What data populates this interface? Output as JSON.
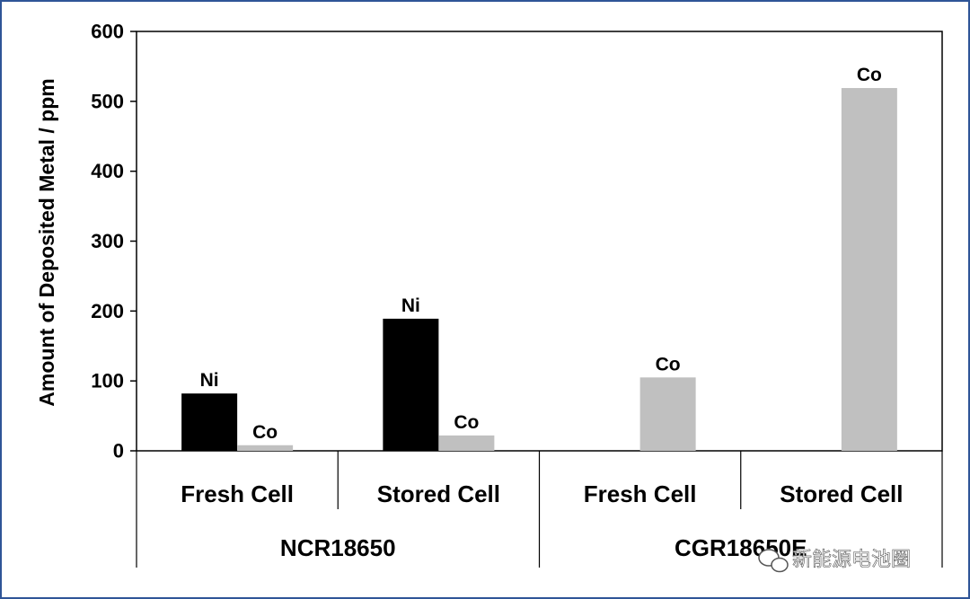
{
  "chart_data": {
    "type": "bar",
    "title": "",
    "xlabel": "",
    "ylabel": "Amount of Deposited Metal / ppm",
    "ylim": [
      0,
      600
    ],
    "yticks": [
      "0",
      "100",
      "200",
      "300",
      "400",
      "500",
      "600"
    ],
    "grid": false,
    "legend": "none",
    "groups": [
      {
        "name": "NCR18650",
        "categories": [
          "Fresh Cell",
          "Stored Cell"
        ]
      },
      {
        "name": "CGR18650E",
        "categories": [
          "Fresh Cell",
          "Stored Cell"
        ]
      }
    ],
    "categories": [
      "Fresh Cell",
      "Stored Cell",
      "Fresh Cell",
      "Stored Cell"
    ],
    "series": [
      {
        "label": "Ni",
        "color": "#000000",
        "values": [
          82,
          189,
          null,
          null
        ]
      },
      {
        "label": "Co",
        "color": "#c0c0c0",
        "values": [
          8,
          22,
          105,
          519
        ]
      }
    ]
  },
  "watermark": {
    "text": "新能源电池圈",
    "icon": "wechat-icon"
  }
}
